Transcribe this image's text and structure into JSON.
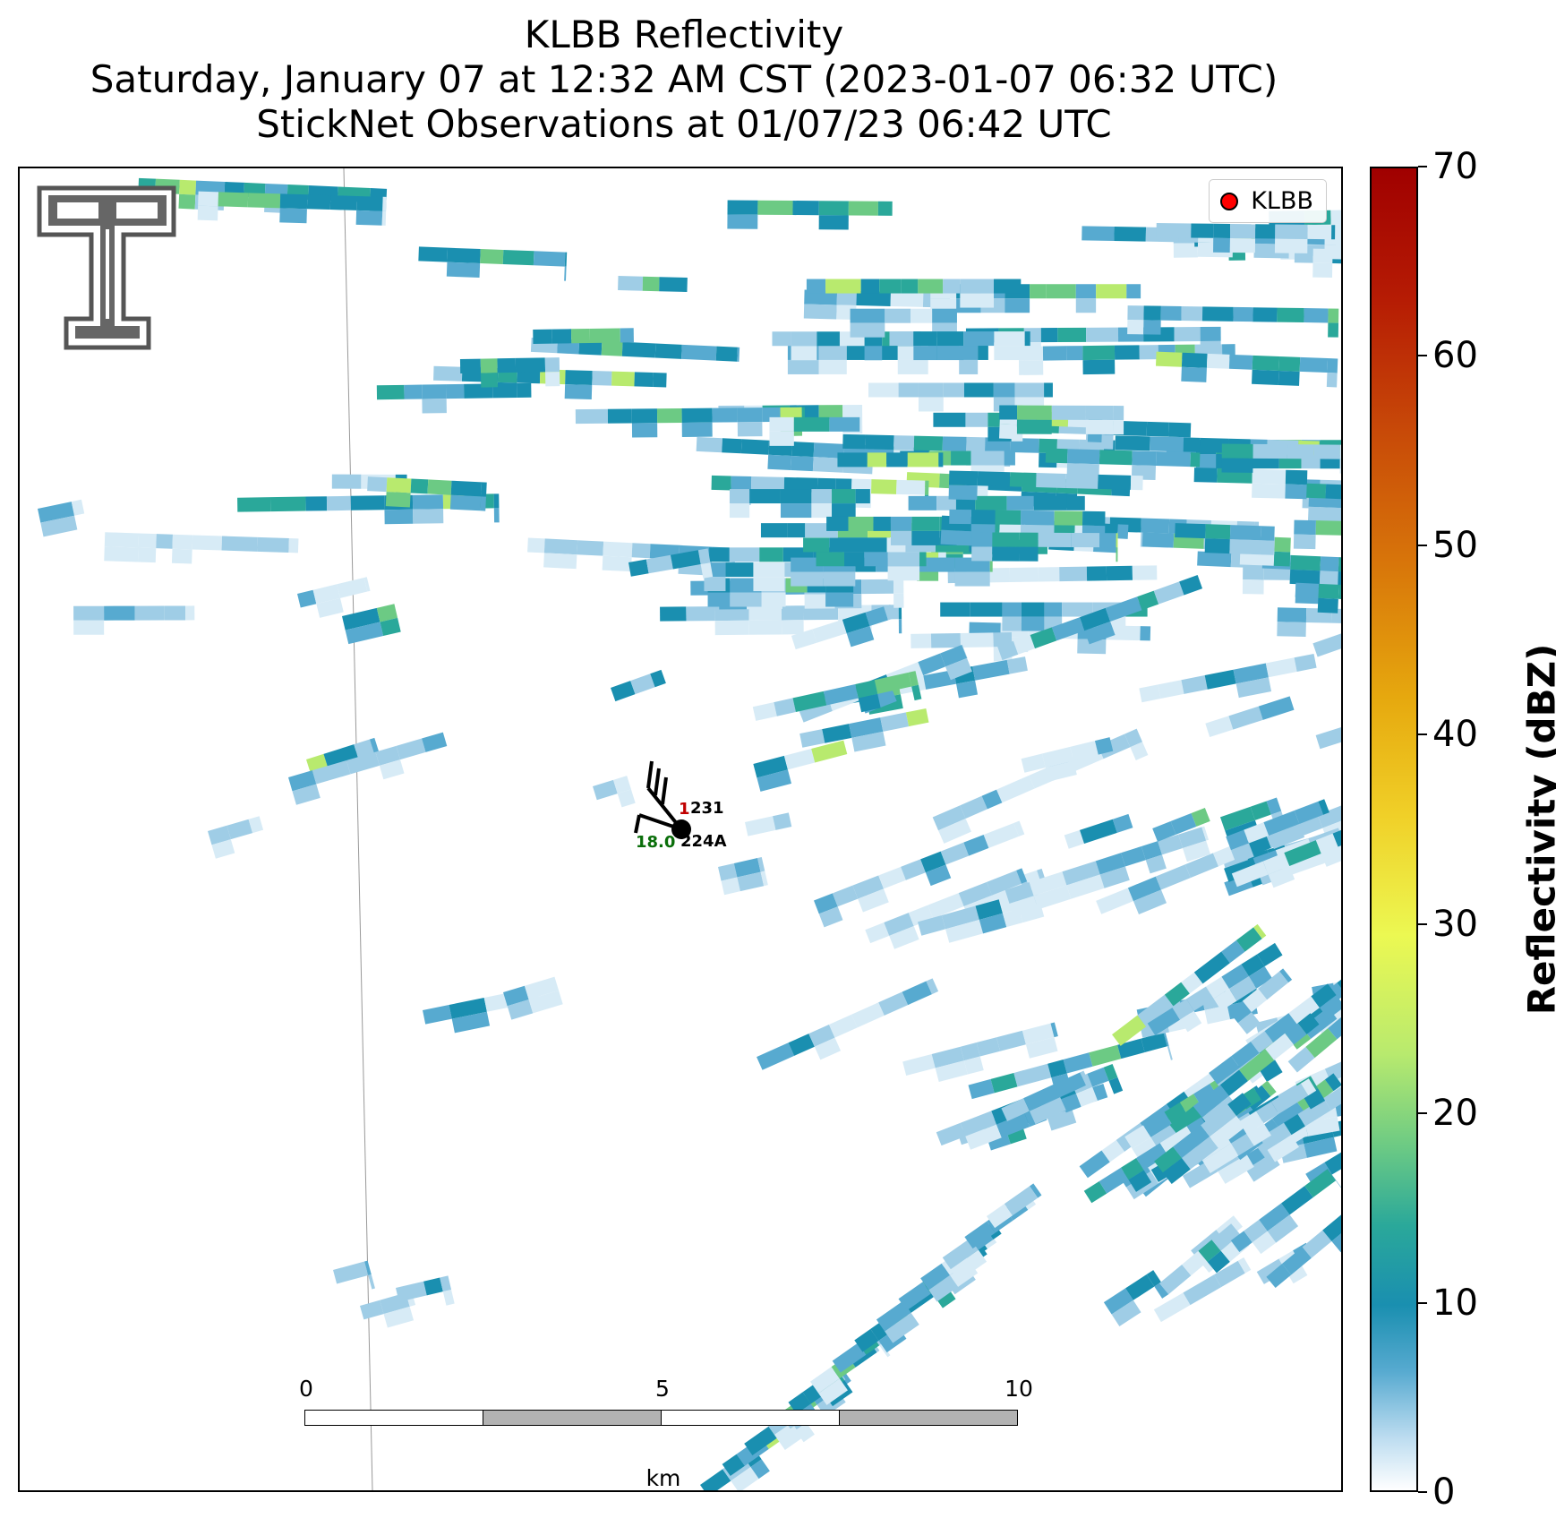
{
  "title": {
    "line1": "KLBB Reflectivity",
    "line2": "Saturday, January 07 at 12:32 AM CST (2023-01-07 06:32 UTC)",
    "line3": "StickNet Observations at 01/07/23 06:42 UTC"
  },
  "legend": {
    "label": "KLBB",
    "marker_color": "#ff0000"
  },
  "station_obs": {
    "station_ids": [
      "231",
      "224A"
    ],
    "temperature_value": "1",
    "temperature_color": "#c00000",
    "dewpoint_value": "18.0",
    "dewpoint_color": "#0a6e0a"
  },
  "scalebar": {
    "ticks": [
      "0",
      "5",
      "10"
    ],
    "unit": "km"
  },
  "colorbar": {
    "label": "Reflectivity (dBZ)",
    "min": 0,
    "max": 70,
    "ticks": [
      "0",
      "10",
      "20",
      "30",
      "40",
      "50",
      "60",
      "70"
    ]
  },
  "colors": {
    "very_light": "#d7ebf6",
    "light_blue": "#9fcde6",
    "blue": "#57aad0",
    "teal": "#1a8fb0",
    "teal_green": "#2aa89a",
    "green": "#6cca84",
    "yellow_green": "#b8ea6e"
  },
  "logo": {
    "name": "texas-tech-double-t-logo"
  }
}
